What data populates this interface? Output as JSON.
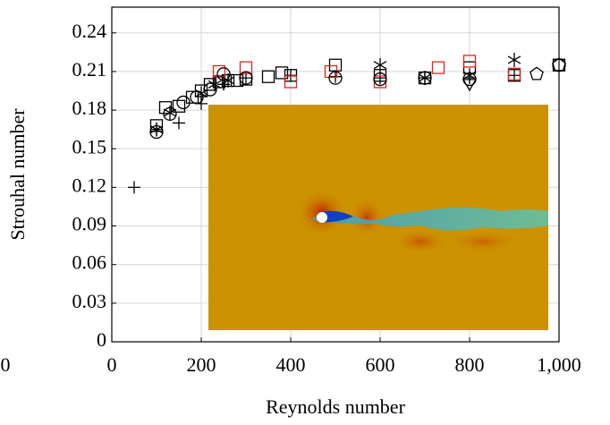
{
  "chart_data": {
    "type": "scatter",
    "x_label": "Reynolds number",
    "y_label": "Strouhal number",
    "annotations": [
      {
        "text": "0"
      }
    ],
    "xlim": [
      0,
      1000
    ],
    "ylim": [
      0,
      0.26
    ],
    "xticks": [
      0,
      200,
      400,
      600,
      800,
      {
        "value": 1000,
        "label": "1,000"
      }
    ],
    "yticks": [
      0,
      0.03,
      0.06,
      0.09,
      0.12,
      0.15,
      0.18,
      0.21,
      0.24
    ],
    "grid": true,
    "series": [
      {
        "marker": "plus",
        "color": "#000000",
        "x": [
          50,
          100,
          150,
          200,
          250,
          300,
          400,
          500,
          600,
          700,
          800,
          900
        ],
        "values": [
          0.12,
          0.165,
          0.17,
          0.185,
          0.2,
          0.205,
          0.207,
          0.206,
          0.205,
          0.205,
          0.205,
          0.207
        ]
      },
      {
        "marker": "square",
        "color": "#000000",
        "x": [
          100,
          120,
          150,
          180,
          200,
          220,
          240,
          260,
          280,
          300,
          350,
          380,
          400,
          500,
          600,
          700,
          800,
          900,
          1000
        ],
        "values": [
          0.168,
          0.182,
          0.183,
          0.19,
          0.195,
          0.2,
          0.202,
          0.203,
          0.203,
          0.204,
          0.206,
          0.209,
          0.207,
          0.215,
          0.207,
          0.205,
          0.213,
          0.207,
          0.215
        ]
      },
      {
        "marker": "square",
        "color": "#e0261f",
        "x": [
          240,
          300,
          400,
          490,
          600,
          730,
          800,
          900
        ],
        "values": [
          0.21,
          0.213,
          0.202,
          0.21,
          0.202,
          0.213,
          0.218,
          0.208
        ]
      },
      {
        "marker": "circle",
        "color": "#000000",
        "x": [
          100,
          130,
          160,
          190,
          220,
          250,
          300,
          500,
          600,
          700,
          800,
          1000
        ],
        "values": [
          0.163,
          0.177,
          0.186,
          0.19,
          0.196,
          0.208,
          0.205,
          0.205,
          0.204,
          0.205,
          0.204,
          0.215
        ]
      },
      {
        "marker": "star",
        "color": "#000000",
        "x": [
          100,
          130,
          200,
          230,
          260,
          600,
          700,
          800,
          900
        ],
        "values": [
          0.165,
          0.178,
          0.193,
          0.2,
          0.203,
          0.215,
          0.205,
          0.207,
          0.219
        ]
      },
      {
        "marker": "pentagon",
        "color": "#000000",
        "x": [
          950,
          1000
        ],
        "values": [
          0.208,
          0.215
        ]
      },
      {
        "marker": "triangle",
        "color": "#000000",
        "x": [
          800
        ],
        "values": [
          0.201
        ]
      }
    ]
  }
}
